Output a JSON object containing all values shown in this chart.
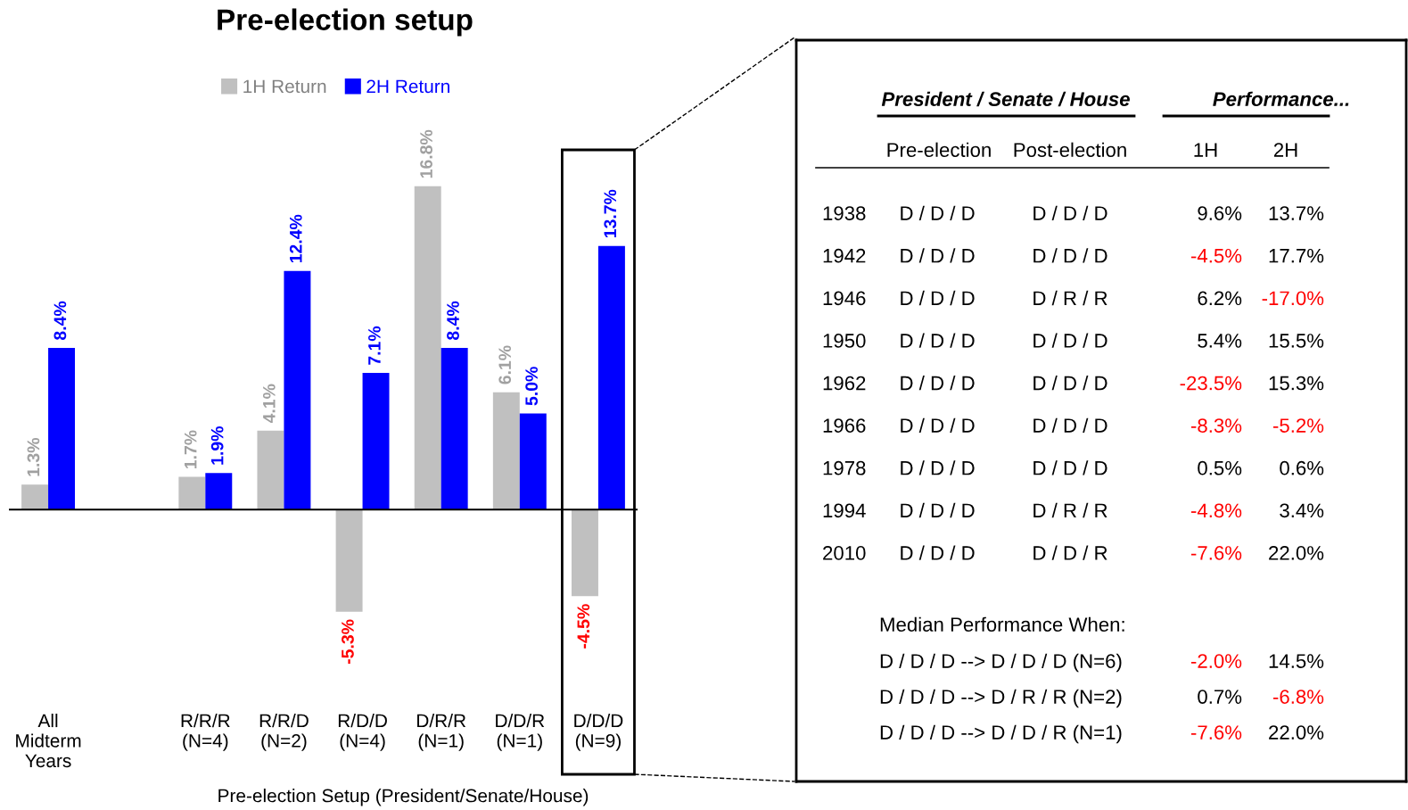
{
  "chart_data": [
    {
      "type": "bar",
      "title": "Pre-election setup",
      "xlabel": "Pre-election Setup (President/Senate/House)",
      "categories": [
        "All\nMidterm\nYears",
        null,
        "R/R/R\n(N=4)",
        "R/R/D\n(N=2)",
        "R/D/D\n(N=4)",
        "D/R/R\n(N=1)",
        "D/D/R\n(N=1)",
        "D/D/D\n(N=9)"
      ],
      "series": [
        {
          "name": "1H Return",
          "color": "#c0c0c0",
          "values": [
            1.3,
            null,
            1.7,
            4.1,
            -5.3,
            16.8,
            6.1,
            -4.5
          ],
          "value_labels": [
            "1.3%",
            null,
            "1.7%",
            "4.1%",
            "-5.3%",
            "16.8%",
            "6.1%",
            "-4.5%"
          ]
        },
        {
          "name": "2H Return",
          "color": "#0000ff",
          "values": [
            8.4,
            null,
            1.9,
            12.4,
            7.1,
            8.4,
            5.0,
            13.7
          ],
          "value_labels": [
            "8.4%",
            null,
            "1.9%",
            "12.4%",
            "7.1%",
            "8.4%",
            "5.0%",
            "13.7%"
          ]
        }
      ],
      "legend": "top left",
      "grid": false,
      "tick_labels": "x"
    },
    {
      "type": "other",
      "annotations": [
        "President / Senate / House",
        "Performance...",
        "Pre-election",
        "Post-election",
        "1H",
        "2H",
        "1938",
        "D / D / D",
        "D / D / D",
        "9.6%",
        "13.7%",
        "1942",
        "D / D / D",
        "D / D / D",
        "-4.5%",
        "17.7%",
        "1946",
        "D / D / D",
        "D / R / R",
        "6.2%",
        "-17.0%",
        "1950",
        "D / D / D",
        "D / D / D",
        "5.4%",
        "15.5%",
        "1962",
        "D / D / D",
        "D / D / D",
        "-23.5%",
        "15.3%",
        "1966",
        "D / D / D",
        "D / D / D",
        "-8.3%",
        "-5.2%",
        "1978",
        "D / D / D",
        "D / D / D",
        "0.5%",
        "0.6%",
        "1994",
        "D / D / D",
        "D / R / R",
        "-4.8%",
        "3.4%",
        "2010",
        "D / D / D",
        "D / D / R",
        "-7.6%",
        "22.0%",
        "Median Performance When:",
        "D / D / D --> D / D / D (N=6)",
        "-2.0%",
        "14.5%",
        "D / D / D --> D / R / R (N=2)",
        "0.7%",
        "-6.8%",
        "D / D / D --> D / D / R (N=1)",
        "-7.6%",
        "22.0%"
      ]
    }
  ]
}
